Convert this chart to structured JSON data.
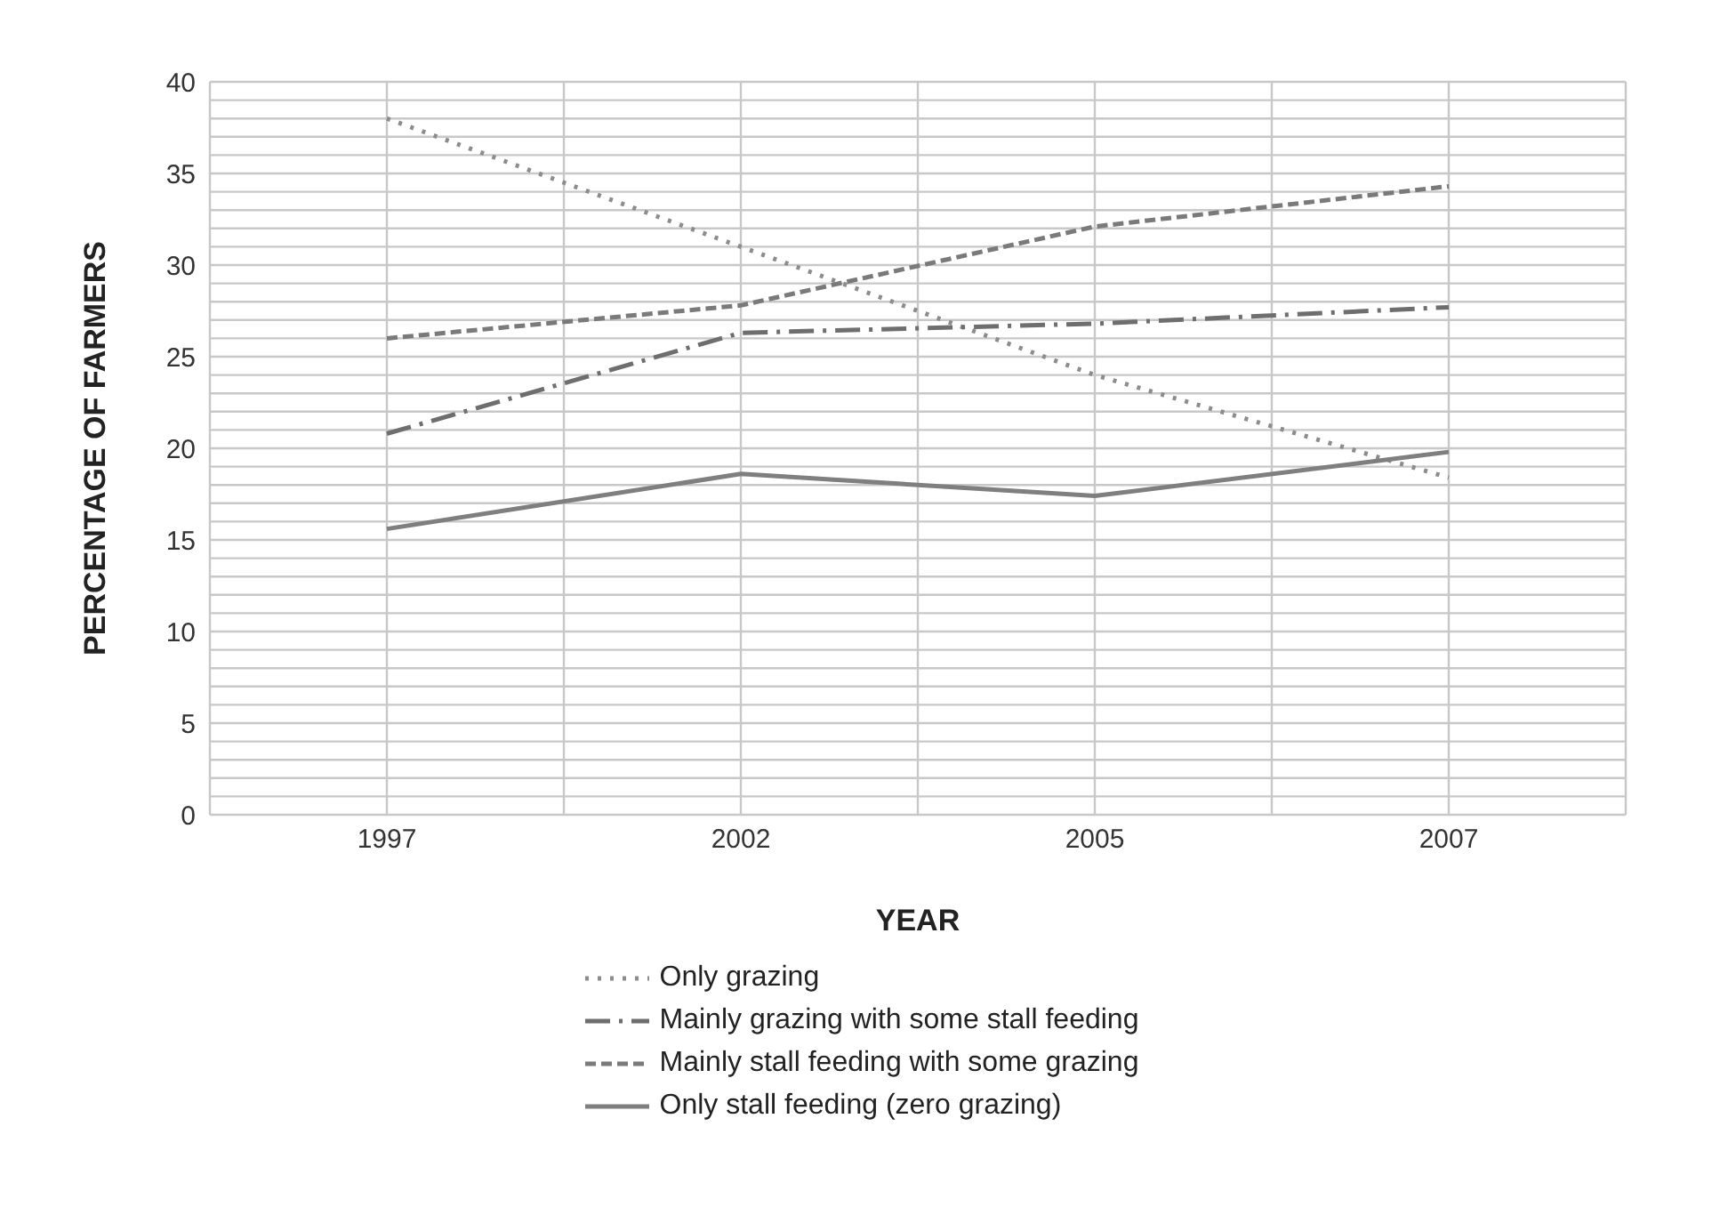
{
  "chart_data": {
    "type": "line",
    "xlabel": "YEAR",
    "ylabel": "PERCENTAGE OF FARMERS",
    "categories": [
      "1997",
      "2002",
      "2005",
      "2007"
    ],
    "ylim": [
      0,
      40
    ],
    "yticks": [
      0,
      5,
      10,
      15,
      20,
      25,
      30,
      35,
      40
    ],
    "grid": true,
    "legend": "bottom",
    "marker": "none",
    "series": [
      {
        "name": "Only grazing",
        "color": "#8c8c8c",
        "line_style": "dotted",
        "values": [
          38,
          31,
          24,
          18.4
        ]
      },
      {
        "name": "Mainly grazing with some stall feeding",
        "color": "#6e6e6e",
        "line_style": "dashdot",
        "values": [
          20.8,
          26.3,
          26.8,
          27.7
        ]
      },
      {
        "name": "Mainly stall feeding with some grazing",
        "color": "#7a7a7a",
        "line_style": "dashed",
        "values": [
          26,
          27.8,
          32.1,
          34.3
        ]
      },
      {
        "name": "Only stall feeding (zero grazing)",
        "color": "#7f7f7f",
        "line_style": "solid",
        "values": [
          15.6,
          18.6,
          17.4,
          19.8
        ]
      }
    ]
  }
}
